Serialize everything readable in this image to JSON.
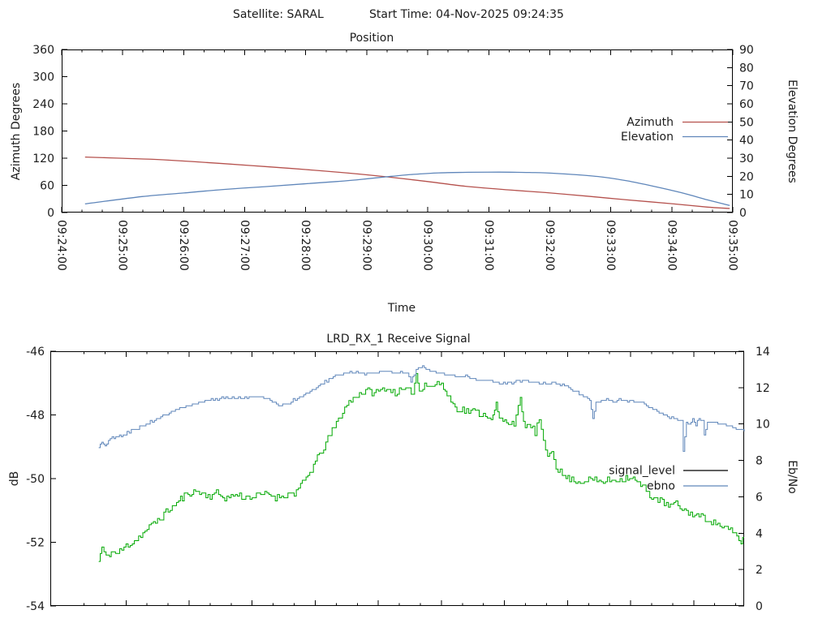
{
  "header": {
    "satellite_label": "Satellite: SARAL",
    "start_time_label": "Start Time: 04-Nov-2025 09:24:35"
  },
  "chart_data": [
    {
      "type": "line",
      "title": "Position",
      "xlabel": "Time",
      "x_ticks": [
        "09:24:00",
        "09:25:00",
        "09:26:00",
        "09:27:00",
        "09:28:00",
        "09:29:00",
        "09:30:00",
        "09:31:00",
        "09:32:00",
        "09:33:00",
        "09:34:00",
        "09:35:00"
      ],
      "x_range_seconds": [
        0,
        660
      ],
      "x_minor_tick_seconds": 20,
      "grid": false,
      "legend_position": "inside-right-middle",
      "y_left": {
        "label": "Azimuth Degrees",
        "ticks": [
          0,
          60,
          120,
          180,
          240,
          300,
          360
        ],
        "range": [
          0,
          360
        ]
      },
      "y_right": {
        "label": "Elevation Degrees",
        "ticks": [
          0,
          10,
          20,
          30,
          40,
          50,
          60,
          70,
          80,
          90
        ],
        "range": [
          0,
          90
        ]
      },
      "series": [
        {
          "name": "Azimuth",
          "axis": "left",
          "color": "#b5514d",
          "legend_color": "#b5514d",
          "smooth": true,
          "points": [
            [
              23,
              122.5
            ],
            [
              60,
              119.8
            ],
            [
              100,
              116.5
            ],
            [
              159,
              108
            ],
            [
              200,
              101.5
            ],
            [
              240,
              95
            ],
            [
              280,
              87.5
            ],
            [
              319,
              79
            ],
            [
              360,
              68.5
            ],
            [
              397,
              58
            ],
            [
              440,
              50
            ],
            [
              476,
              44
            ],
            [
              520,
              35.5
            ],
            [
              556,
              28
            ],
            [
              600,
              19.5
            ],
            [
              635,
              12
            ],
            [
              657,
              9
            ]
          ]
        },
        {
          "name": "Elevation",
          "axis": "right",
          "color": "#5f86ba",
          "legend_color": "#5f86ba",
          "smooth": true,
          "points": [
            [
              23,
              4.8
            ],
            [
              79,
              8.8
            ],
            [
              120,
              10.8
            ],
            [
              159,
              12.7
            ],
            [
              200,
              14.3
            ],
            [
              238,
              15.8
            ],
            [
              270,
              17.1
            ],
            [
              291,
              18.1
            ],
            [
              319,
              19.7
            ],
            [
              344,
              21
            ],
            [
              371,
              21.9
            ],
            [
              400,
              22.2
            ],
            [
              430,
              22.3
            ],
            [
              460,
              22.1
            ],
            [
              476,
              21.9
            ],
            [
              503,
              21
            ],
            [
              530,
              19.7
            ],
            [
              556,
              17.5
            ],
            [
              582,
              14.5
            ],
            [
              609,
              11
            ],
            [
              635,
              7
            ],
            [
              657,
              3.9
            ]
          ]
        }
      ]
    },
    {
      "type": "line",
      "title": "LRD_RX_1 Receive Signal",
      "xlabel": "",
      "x_ticks": [],
      "x_tick_labels_visible": false,
      "x_range_seconds": [
        0,
        660
      ],
      "x_minor_tick_seconds": 20,
      "x_major_tick_offset_seconds": 72,
      "grid": false,
      "legend_position": "inside-right-middle",
      "y_left": {
        "label": "dB",
        "ticks": [
          -46,
          -48,
          -50,
          -52,
          -54
        ],
        "range": [
          -54,
          -46
        ]
      },
      "y_right": {
        "label": "Eb/No",
        "ticks": [
          0,
          2,
          4,
          6,
          8,
          10,
          12,
          14
        ],
        "range": [
          0,
          14
        ]
      },
      "series": [
        {
          "name": "signal_level",
          "axis": "left",
          "color": "#00a800",
          "legend_color": "#000000",
          "noise": 0.22,
          "quant": 0.05,
          "seed": 11,
          "points": [
            [
              46,
              -52.6
            ],
            [
              49,
              -52.15
            ],
            [
              53,
              -52.5
            ],
            [
              58,
              -52.3
            ],
            [
              64,
              -52.35
            ],
            [
              72,
              -52.1
            ],
            [
              82,
              -51.9
            ],
            [
              92,
              -51.6
            ],
            [
              102,
              -51.3
            ],
            [
              112,
              -51.0
            ],
            [
              122,
              -50.7
            ],
            [
              131,
              -50.45
            ],
            [
              140,
              -50.4
            ],
            [
              150,
              -50.55
            ],
            [
              158,
              -50.45
            ],
            [
              166,
              -50.6
            ],
            [
              176,
              -50.5
            ],
            [
              186,
              -50.6
            ],
            [
              196,
              -50.55
            ],
            [
              206,
              -50.45
            ],
            [
              214,
              -50.6
            ],
            [
              224,
              -50.5
            ],
            [
              232,
              -50.45
            ],
            [
              238,
              -50.25
            ],
            [
              245,
              -49.9
            ],
            [
              252,
              -49.5
            ],
            [
              260,
              -49.0
            ],
            [
              268,
              -48.5
            ],
            [
              276,
              -48.0
            ],
            [
              284,
              -47.6
            ],
            [
              292,
              -47.35
            ],
            [
              300,
              -47.25
            ],
            [
              310,
              -47.3
            ],
            [
              318,
              -47.15
            ],
            [
              328,
              -47.3
            ],
            [
              338,
              -47.2
            ],
            [
              345,
              -47.3
            ],
            [
              348,
              -46.7
            ],
            [
              351,
              -47.25
            ],
            [
              356,
              -47.0
            ],
            [
              362,
              -47.15
            ],
            [
              368,
              -46.95
            ],
            [
              374,
              -47.15
            ],
            [
              379,
              -47.45
            ],
            [
              385,
              -47.8
            ],
            [
              394,
              -47.85
            ],
            [
              404,
              -47.9
            ],
            [
              414,
              -48.0
            ],
            [
              421,
              -48.1
            ],
            [
              424,
              -47.65
            ],
            [
              427,
              -48.15
            ],
            [
              434,
              -48.2
            ],
            [
              441,
              -48.25
            ],
            [
              447,
              -47.55
            ],
            [
              450,
              -48.3
            ],
            [
              457,
              -48.35
            ],
            [
              461,
              -48.55
            ],
            [
              465,
              -48.15
            ],
            [
              469,
              -48.9
            ],
            [
              473,
              -49.3
            ],
            [
              477,
              -49.05
            ],
            [
              481,
              -49.6
            ],
            [
              487,
              -49.9
            ],
            [
              494,
              -50.0
            ],
            [
              504,
              -50.1
            ],
            [
              514,
              -50.0
            ],
            [
              524,
              -50.1
            ],
            [
              534,
              -50.05
            ],
            [
              544,
              -50.0
            ],
            [
              551,
              -49.95
            ],
            [
              558,
              -50.1
            ],
            [
              565,
              -50.3
            ],
            [
              572,
              -50.55
            ],
            [
              580,
              -50.7
            ],
            [
              588,
              -50.85
            ],
            [
              595,
              -50.8
            ],
            [
              603,
              -51.0
            ],
            [
              611,
              -51.1
            ],
            [
              619,
              -51.2
            ],
            [
              627,
              -51.3
            ],
            [
              635,
              -51.45
            ],
            [
              643,
              -51.55
            ],
            [
              651,
              -51.75
            ],
            [
              657,
              -52.0
            ],
            [
              660,
              -51.85
            ]
          ]
        },
        {
          "name": "ebno",
          "axis": "right",
          "color": "#5f86ba",
          "legend_color": "#5f86ba",
          "noise": 0.12,
          "quant": 0.1,
          "seed": 5,
          "points": [
            [
              46,
              8.7
            ],
            [
              49,
              9.0
            ],
            [
              52,
              8.8
            ],
            [
              57,
              9.2
            ],
            [
              64,
              9.3
            ],
            [
              71,
              9.45
            ],
            [
              79,
              9.7
            ],
            [
              87,
              9.9
            ],
            [
              95,
              10.1
            ],
            [
              103,
              10.35
            ],
            [
              111,
              10.55
            ],
            [
              119,
              10.75
            ],
            [
              129,
              11.0
            ],
            [
              139,
              11.15
            ],
            [
              149,
              11.3
            ],
            [
              159,
              11.4
            ],
            [
              169,
              11.45
            ],
            [
              179,
              11.4
            ],
            [
              189,
              11.45
            ],
            [
              199,
              11.5
            ],
            [
              207,
              11.4
            ],
            [
              213,
              11.2
            ],
            [
              219,
              11.05
            ],
            [
              225,
              11.1
            ],
            [
              231,
              11.3
            ],
            [
              239,
              11.5
            ],
            [
              247,
              11.8
            ],
            [
              255,
              12.1
            ],
            [
              263,
              12.4
            ],
            [
              271,
              12.65
            ],
            [
              279,
              12.8
            ],
            [
              289,
              12.85
            ],
            [
              299,
              12.8
            ],
            [
              309,
              12.85
            ],
            [
              319,
              12.9
            ],
            [
              329,
              12.85
            ],
            [
              339,
              12.8
            ],
            [
              343,
              12.35
            ],
            [
              346,
              12.7
            ],
            [
              350,
              13.1
            ],
            [
              354,
              13.2
            ],
            [
              359,
              13.0
            ],
            [
              365,
              12.85
            ],
            [
              371,
              12.8
            ],
            [
              377,
              12.7
            ],
            [
              383,
              12.65
            ],
            [
              389,
              12.6
            ],
            [
              395,
              12.65
            ],
            [
              401,
              12.5
            ],
            [
              409,
              12.4
            ],
            [
              417,
              12.45
            ],
            [
              423,
              12.3
            ],
            [
              429,
              12.2
            ],
            [
              435,
              12.25
            ],
            [
              441,
              12.3
            ],
            [
              447,
              12.4
            ],
            [
              453,
              12.35
            ],
            [
              459,
              12.3
            ],
            [
              465,
              12.2
            ],
            [
              471,
              12.25
            ],
            [
              477,
              12.3
            ],
            [
              483,
              12.2
            ],
            [
              489,
              12.1
            ],
            [
              495,
              11.9
            ],
            [
              501,
              11.7
            ],
            [
              507,
              11.5
            ],
            [
              513,
              11.35
            ],
            [
              516,
              10.3
            ],
            [
              519,
              11.2
            ],
            [
              524,
              11.25
            ],
            [
              529,
              11.3
            ],
            [
              535,
              11.25
            ],
            [
              541,
              11.35
            ],
            [
              547,
              11.3
            ],
            [
              553,
              11.25
            ],
            [
              559,
              11.2
            ],
            [
              565,
              11.1
            ],
            [
              571,
              10.9
            ],
            [
              577,
              10.7
            ],
            [
              583,
              10.5
            ],
            [
              589,
              10.4
            ],
            [
              595,
              10.3
            ],
            [
              600,
              10.2
            ],
            [
              602,
              8.5
            ],
            [
              605,
              10.15
            ],
            [
              608,
              10.0
            ],
            [
              611,
              10.3
            ],
            [
              614,
              9.9
            ],
            [
              617,
              10.35
            ],
            [
              620,
              10.2
            ],
            [
              622,
              9.4
            ],
            [
              625,
              10.1
            ],
            [
              631,
              10.1
            ],
            [
              637,
              10.0
            ],
            [
              643,
              9.9
            ],
            [
              649,
              9.85
            ],
            [
              654,
              9.75
            ],
            [
              660,
              9.6
            ]
          ]
        }
      ]
    }
  ]
}
